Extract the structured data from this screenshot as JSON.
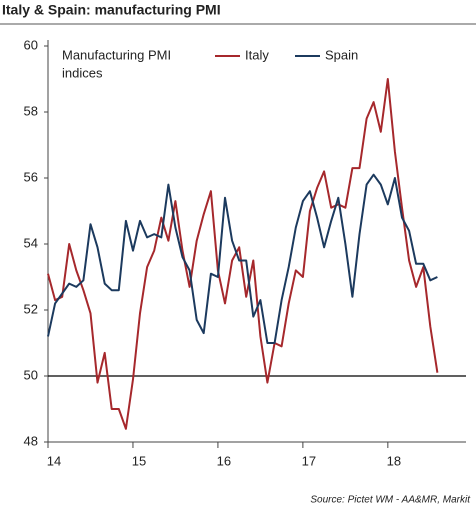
{
  "chart_data": {
    "type": "line",
    "title": "Italy & Spain: manufacturing PMI",
    "annotation": [
      "Manufacturing PMI",
      "indices"
    ],
    "source": "Source: Pictet WM - AA&MR, Markit",
    "x": [
      14,
      14.083,
      14.167,
      14.25,
      14.333,
      14.417,
      14.5,
      14.583,
      14.667,
      14.75,
      14.833,
      14.917,
      15,
      15.083,
      15.167,
      15.25,
      15.333,
      15.417,
      15.5,
      15.583,
      15.667,
      15.75,
      15.833,
      15.917,
      16,
      16.083,
      16.167,
      16.25,
      16.333,
      16.417,
      16.5,
      16.583,
      16.667,
      16.75,
      16.833,
      16.917,
      17,
      17.083,
      17.167,
      17.25,
      17.333,
      17.417,
      17.5,
      17.583,
      17.667,
      17.75,
      17.833,
      17.917,
      18,
      18.083,
      18.167,
      18.25,
      18.333,
      18.417,
      18.5,
      18.583
    ],
    "series": [
      {
        "name": "Italy",
        "color": "#a6282c",
        "values": [
          53.1,
          52.3,
          52.4,
          54.0,
          53.2,
          52.6,
          51.9,
          49.8,
          50.7,
          49.0,
          49.0,
          48.4,
          49.9,
          51.9,
          53.3,
          53.8,
          54.8,
          54.1,
          55.3,
          53.8,
          52.7,
          54.1,
          54.9,
          55.6,
          53.2,
          52.2,
          53.5,
          53.9,
          52.4,
          53.5,
          51.2,
          49.8,
          51.0,
          50.9,
          52.2,
          53.2,
          53.0,
          55.0,
          55.7,
          56.2,
          55.1,
          55.2,
          55.1,
          56.3,
          56.3,
          57.8,
          58.3,
          57.4,
          59.0,
          56.8,
          55.1,
          53.5,
          52.7,
          53.3,
          51.5,
          50.1
        ]
      },
      {
        "name": "Spain",
        "color": "#1c3a5e",
        "values": [
          51.2,
          52.2,
          52.5,
          52.8,
          52.7,
          52.9,
          54.6,
          53.9,
          52.8,
          52.6,
          52.6,
          54.7,
          53.8,
          54.7,
          54.2,
          54.3,
          54.2,
          55.8,
          54.5,
          53.6,
          53.2,
          51.7,
          51.3,
          53.1,
          53.0,
          55.4,
          54.1,
          53.5,
          53.5,
          51.8,
          52.3,
          51.0,
          51.0,
          52.3,
          53.3,
          54.5,
          55.3,
          55.6,
          54.8,
          53.9,
          54.7,
          55.4,
          54.0,
          52.4,
          54.3,
          55.8,
          56.1,
          55.8,
          55.2,
          56.0,
          54.8,
          54.4,
          53.4,
          53.4,
          52.9,
          53.0
        ]
      }
    ],
    "xlim": [
      14,
      18.92
    ],
    "xticks": [
      14,
      15,
      16,
      17,
      18
    ],
    "ylim": [
      48,
      60
    ],
    "yticks": [
      48,
      50,
      52,
      54,
      56,
      58,
      60
    ],
    "reference_line": 50,
    "grid": false
  }
}
